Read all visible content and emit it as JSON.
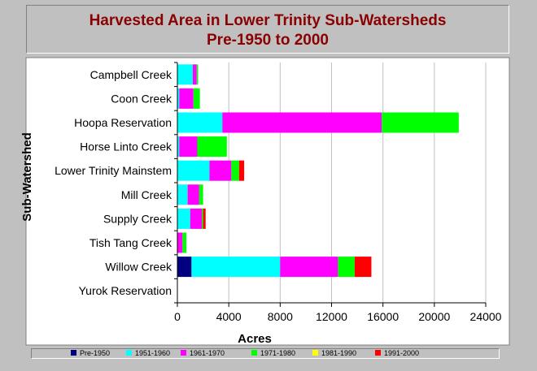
{
  "chart_data": {
    "type": "bar",
    "orientation": "horizontal",
    "stacked": true,
    "title": "Harvested Area in Lower Trinity Sub-Watersheds",
    "subtitle": "Pre-1950 to 2000",
    "xlabel": "Acres",
    "ylabel": "Sub-Watershed",
    "xlim": [
      0,
      24000
    ],
    "xticks": [
      0,
      4000,
      8000,
      12000,
      16000,
      20000,
      24000
    ],
    "grid": true,
    "legend_position": "bottom",
    "categories": [
      "Campbell Creek",
      "Coon Creek",
      "Hoopa Reservation",
      "Horse Linto Creek",
      "Lower Trinity Mainstem",
      "Mill Creek",
      "Supply Creek",
      "Tish Tang Creek",
      "Willow Creek",
      "Yurok Reservation"
    ],
    "series": [
      {
        "name": "Pre-1950",
        "color": "#000080",
        "values": [
          0,
          0,
          0,
          0,
          0,
          0,
          0,
          0,
          1100,
          0
        ]
      },
      {
        "name": "1951-1960",
        "color": "#00ffff",
        "values": [
          1200,
          150,
          3500,
          150,
          2500,
          800,
          1000,
          0,
          6900,
          0
        ]
      },
      {
        "name": "1961-1970",
        "color": "#ff00ff",
        "values": [
          300,
          1100,
          12400,
          1400,
          1700,
          900,
          900,
          400,
          4500,
          0
        ]
      },
      {
        "name": "1971-1980",
        "color": "#00ff00",
        "values": [
          100,
          500,
          6000,
          2300,
          600,
          300,
          100,
          300,
          1300,
          0
        ]
      },
      {
        "name": "1981-1990",
        "color": "#ffff00",
        "values": [
          0,
          0,
          0,
          0,
          0,
          0,
          0,
          0,
          0,
          0
        ]
      },
      {
        "name": "1991-2000",
        "color": "#ff0000",
        "values": [
          0,
          0,
          0,
          0,
          400,
          0,
          200,
          0,
          1300,
          0
        ]
      }
    ]
  }
}
